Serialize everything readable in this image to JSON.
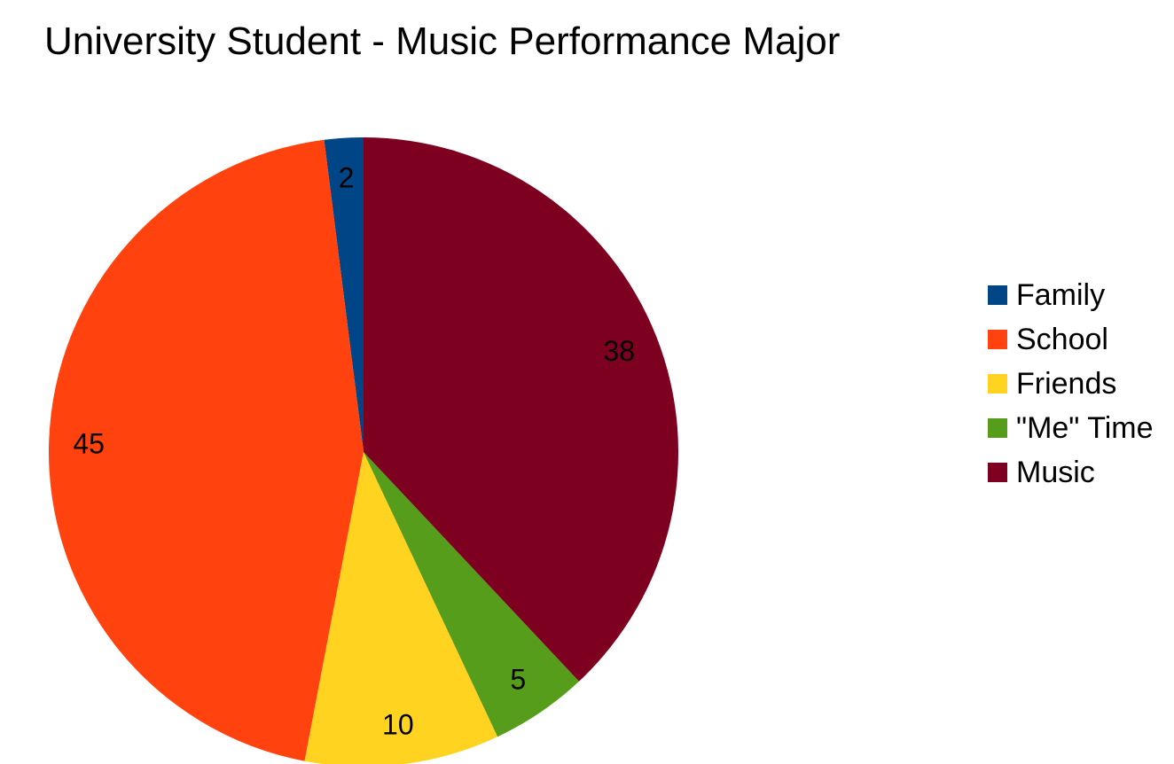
{
  "chart_data": {
    "type": "pie",
    "title": "University Student - Music Performance Major",
    "slices": [
      {
        "label": "Family",
        "value": 2,
        "color": "#004586"
      },
      {
        "label": "School",
        "value": 45,
        "color": "#ff420e"
      },
      {
        "label": "Friends",
        "value": 10,
        "color": "#ffd320"
      },
      {
        "label": "\"Me\" Time",
        "value": 5,
        "color": "#579d1c"
      },
      {
        "label": "Music",
        "value": 38,
        "color": "#7e0021"
      }
    ],
    "legend": {
      "placement": "right"
    },
    "start_angle_deg": 0,
    "direction": "counterclockwise"
  }
}
